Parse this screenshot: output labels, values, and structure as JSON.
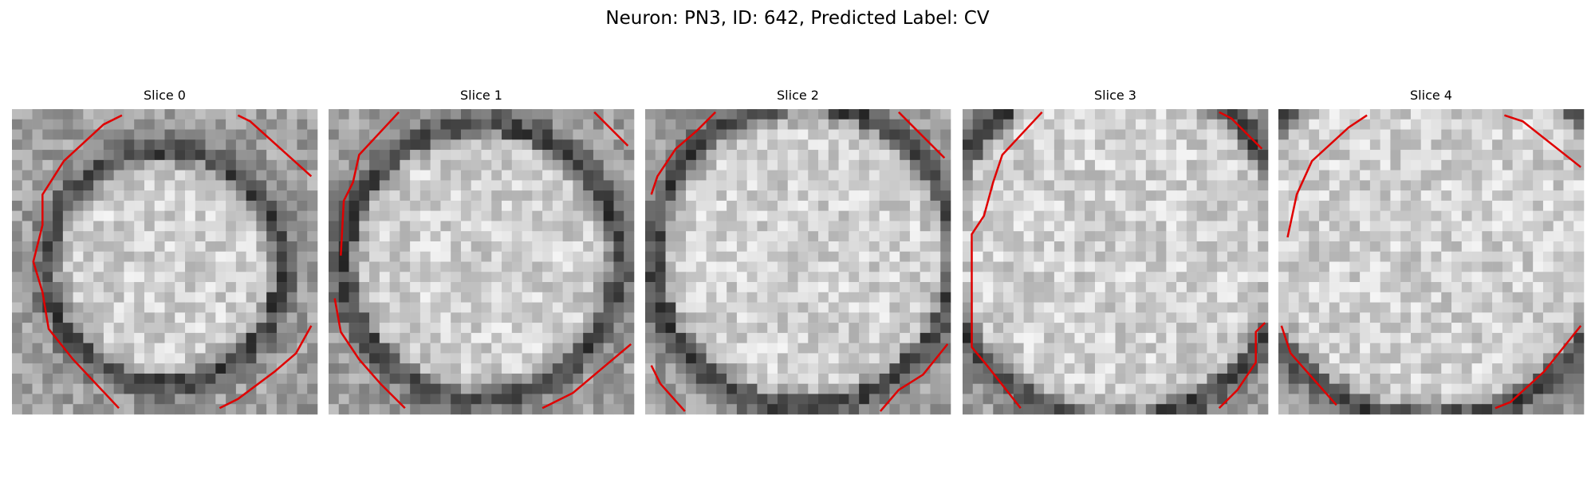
{
  "title": "Neuron: PN3, ID: 642, Predicted Label: CV",
  "panels": [
    {
      "title": "Slice 0"
    },
    {
      "title": "Slice 1"
    },
    {
      "title": "Slice 2"
    },
    {
      "title": "Slice 3"
    },
    {
      "title": "Slice 4"
    }
  ]
}
